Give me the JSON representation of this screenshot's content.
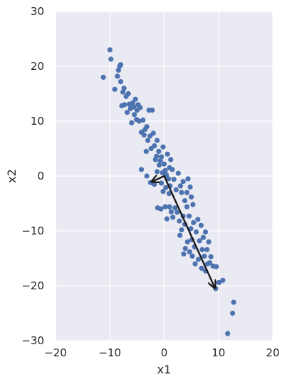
{
  "chart_data": {
    "type": "scatter",
    "title": "",
    "xlabel": "x1",
    "ylabel": "x2",
    "xlim": [
      -20,
      20
    ],
    "ylim": [
      -30,
      30
    ],
    "x_ticks": [
      -20,
      -10,
      0,
      10,
      20
    ],
    "y_ticks": [
      -30,
      -20,
      -10,
      0,
      10,
      20,
      30
    ],
    "x_tick_labels": [
      "−20",
      "−10",
      "0",
      "10",
      "20"
    ],
    "y_tick_labels": [
      "−30",
      "−20",
      "−10",
      "0",
      "10",
      "20",
      "30"
    ],
    "grid": true,
    "legend": "none",
    "colors": {
      "background": "#eaeaf2",
      "grid": "#ffffff",
      "points": "#4c72b0",
      "arrows": "#1a1a1a",
      "text": "#262626"
    },
    "series": [
      {
        "points": [
          [
            -11.2,
            18.0
          ],
          [
            -10.0,
            23.0
          ],
          [
            -9.8,
            21.3
          ],
          [
            -9.1,
            15.8
          ],
          [
            -8.6,
            18.2
          ],
          [
            -8.4,
            19.3
          ],
          [
            -8.2,
            20.0
          ],
          [
            -8.0,
            20.3
          ],
          [
            -8.0,
            17.2
          ],
          [
            -7.8,
            12.8
          ],
          [
            -7.6,
            15.3
          ],
          [
            -7.4,
            16.0
          ],
          [
            -7.3,
            13.0
          ],
          [
            -7.0,
            14.5
          ],
          [
            -6.8,
            11.6
          ],
          [
            -6.6,
            15.0
          ],
          [
            -6.4,
            13.1
          ],
          [
            -6.2,
            12.3
          ],
          [
            -6.0,
            9.7
          ],
          [
            -5.8,
            13.3
          ],
          [
            -5.6,
            12.6
          ],
          [
            -5.5,
            11.2
          ],
          [
            -5.3,
            14.0
          ],
          [
            -5.1,
            10.3
          ],
          [
            -5.0,
            12.0
          ],
          [
            -4.8,
            13.0
          ],
          [
            -4.6,
            10.0
          ],
          [
            -4.4,
            12.5
          ],
          [
            -4.2,
            8.0
          ],
          [
            -3.9,
            10.2
          ],
          [
            -3.7,
            7.5
          ],
          [
            -3.5,
            8.5
          ],
          [
            -3.3,
            4.5
          ],
          [
            -3.2,
            9.0
          ],
          [
            -3.0,
            6.5
          ],
          [
            -2.8,
            12.0
          ],
          [
            -2.6,
            7.3
          ],
          [
            -2.4,
            5.0
          ],
          [
            -2.2,
            12.0
          ],
          [
            -2.0,
            7.8
          ],
          [
            -1.8,
            5.5
          ],
          [
            -1.6,
            3.0
          ],
          [
            -1.4,
            3.6
          ],
          [
            -1.3,
            6.5
          ],
          [
            -1.0,
            4.5
          ],
          [
            -0.9,
            2.0
          ],
          [
            -0.7,
            2.8
          ],
          [
            -0.5,
            3.5
          ],
          [
            -0.3,
            0.6
          ],
          [
            -0.2,
            5.3
          ],
          [
            0.0,
            2.2
          ],
          [
            0.2,
            1.0
          ],
          [
            0.4,
            0.2
          ],
          [
            0.6,
            4.0
          ],
          [
            0.8,
            -0.5
          ],
          [
            1.0,
            1.5
          ],
          [
            1.2,
            3.0
          ],
          [
            1.5,
            1.2
          ],
          [
            -4.2,
            1.2
          ],
          [
            -3.2,
            0.0
          ],
          [
            -2.5,
            -1.2
          ],
          [
            -1.8,
            -1.5
          ],
          [
            -1.3,
            0.8
          ],
          [
            -0.5,
            -1.3
          ],
          [
            -0.2,
            -2.8
          ],
          [
            0.3,
            -2.1
          ],
          [
            0.9,
            -3.2
          ],
          [
            1.1,
            -1.8
          ],
          [
            1.8,
            -0.6
          ],
          [
            2.2,
            -2.5
          ],
          [
            2.6,
            0.5
          ],
          [
            3.0,
            -1.8
          ],
          [
            3.2,
            -3.0
          ],
          [
            3.5,
            -1.0
          ],
          [
            3.8,
            -4.5
          ],
          [
            4.2,
            -3.0
          ],
          [
            4.4,
            -0.5
          ],
          [
            4.8,
            -2.0
          ],
          [
            5.0,
            -3.8
          ],
          [
            5.3,
            -5.2
          ],
          [
            -1.2,
            -5.8
          ],
          [
            -0.6,
            -6.0
          ],
          [
            0.2,
            -5.6
          ],
          [
            0.5,
            -7.8
          ],
          [
            1.0,
            -5.6
          ],
          [
            1.3,
            -6.5
          ],
          [
            1.6,
            -7.5
          ],
          [
            2.0,
            -5.8
          ],
          [
            2.4,
            -6.6
          ],
          [
            2.8,
            -8.2
          ],
          [
            3.2,
            -9.8
          ],
          [
            3.5,
            -7.3
          ],
          [
            3.8,
            -8.8
          ],
          [
            4.2,
            -5.6
          ],
          [
            4.6,
            -7.3
          ],
          [
            4.9,
            -9.6
          ],
          [
            5.1,
            -11.6
          ],
          [
            5.4,
            -8.5
          ],
          [
            5.6,
            -12.9
          ],
          [
            5.9,
            -10.2
          ],
          [
            6.2,
            -7.9
          ],
          [
            6.5,
            -11.8
          ],
          [
            6.8,
            -9.0
          ],
          [
            7.0,
            -13.4
          ],
          [
            7.2,
            -11.2
          ],
          [
            7.4,
            -14.6
          ],
          [
            7.6,
            -10.2
          ],
          [
            7.9,
            -13.4
          ],
          [
            8.2,
            -12.0
          ],
          [
            8.4,
            -15.8
          ],
          [
            8.6,
            -14.7
          ],
          [
            9.0,
            -16.4
          ],
          [
            2.9,
            -10.8
          ],
          [
            3.6,
            -14.2
          ],
          [
            3.9,
            -13.2
          ],
          [
            4.3,
            -12.0
          ],
          [
            4.7,
            -13.8
          ],
          [
            5.2,
            -14.6
          ],
          [
            5.7,
            -16.0
          ],
          [
            6.3,
            -15.2
          ],
          [
            6.9,
            -16.8
          ],
          [
            7.6,
            -17.3
          ],
          [
            8.0,
            -16.0
          ],
          [
            9.5,
            -20.5
          ],
          [
            10.1,
            -19.4
          ],
          [
            10.8,
            -19.0
          ],
          [
            9.6,
            -16.5
          ],
          [
            12.8,
            -23.0
          ],
          [
            12.6,
            -25.0
          ],
          [
            11.7,
            -28.7
          ]
        ]
      }
    ],
    "annotations": [
      {
        "type": "arrow",
        "from": [
          0,
          0
        ],
        "to": [
          9.3,
          -20.3
        ]
      },
      {
        "type": "arrow",
        "from": [
          0,
          0
        ],
        "to": [
          -2.2,
          -1.0
        ]
      }
    ]
  }
}
